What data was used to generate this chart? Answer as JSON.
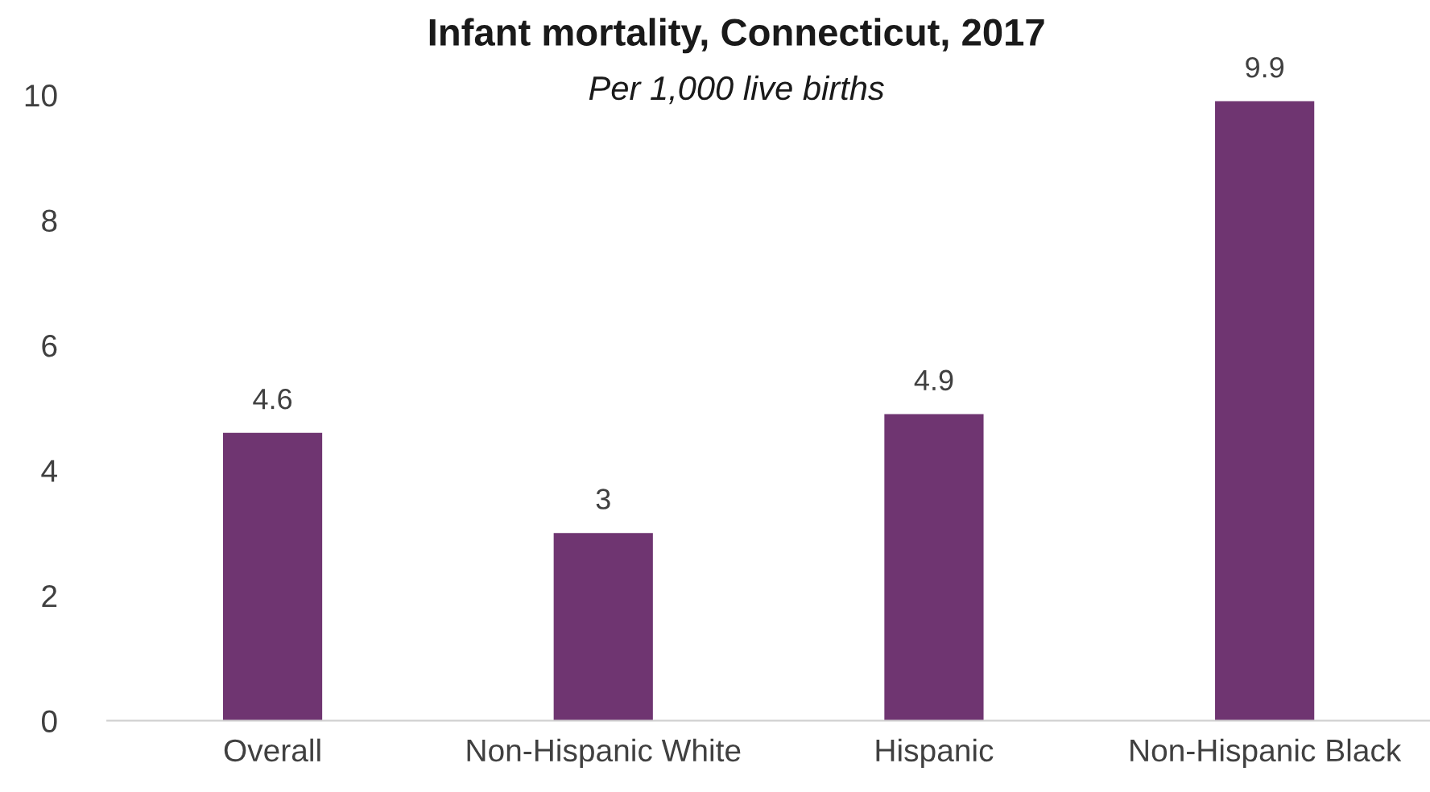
{
  "chart_data": {
    "type": "bar",
    "title": "Infant mortality, Connecticut, 2017",
    "subtitle": "Per 1,000 live births",
    "categories": [
      "Overall",
      "Non-Hispanic White",
      "Hispanic",
      "Non-Hispanic Black"
    ],
    "values": [
      4.6,
      3,
      4.9,
      9.9
    ],
    "color": "#6f3571",
    "ylim": [
      0,
      10
    ],
    "yticks": [
      0,
      2,
      4,
      6,
      8,
      10
    ],
    "grid": false,
    "data_labels": true
  }
}
